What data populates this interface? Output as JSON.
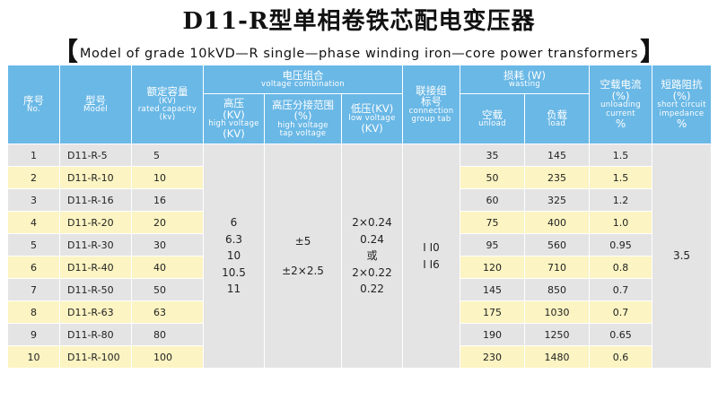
{
  "title": "D11-R型单相卷铁芯配电变压器",
  "subtitle": {
    "left_bracket": "【",
    "text": "Model of grade 10kVD—R single—phase winding iron—core power transformers",
    "right_bracket": "】"
  },
  "headers": {
    "no_cn": "序号",
    "no_en": "No.",
    "model_cn": "型号",
    "model_en": "Model",
    "cap_cn": "额定容量",
    "cap_unit": "(KV)",
    "cap_en": "rated capacity",
    "cap_en2": "(kv)",
    "volt_cn": "电压组合",
    "volt_en": "voltage combination",
    "hv_cn": "高压",
    "hv_unit": "(KV)",
    "hv_en": "high voltage",
    "hv_unit2": "(KV)",
    "tap_cn": "高压分接范围",
    "tap_unit": "(%)",
    "tap_en1": "high voltage",
    "tap_en2": "tap voltage",
    "lv_cn": "低压(KV)",
    "lv_en": "low voltage",
    "lv_unit": "(KV)",
    "grp_cn1": "联接组",
    "grp_cn2": "标号",
    "grp_en1": "connection",
    "grp_en2": "group tab",
    "loss_cn": "损耗 (W)",
    "loss_en": "wasting",
    "unload_cn": "空载",
    "unload_en": "unload",
    "load_cn": "负载",
    "load_en": "load",
    "cur_cn": "空载电流",
    "cur_unit": "(%)",
    "cur_en1": "unloading",
    "cur_en2": "current",
    "cur_pct": "%",
    "imp_cn": "短路阻抗",
    "imp_unit": "(%)",
    "imp_en1": "short circuit",
    "imp_en2": "impedance",
    "imp_pct": "%"
  },
  "merged": {
    "hv": [
      "6",
      "6.3",
      "10",
      "10.5",
      "11"
    ],
    "tap": [
      "±5",
      "±2×2.5"
    ],
    "lv": [
      "2×0.24",
      "0.24",
      "或",
      "2×0.22",
      "0.22"
    ],
    "group": [
      "I I0",
      "I I6"
    ],
    "impedance": "3.5"
  },
  "rows": [
    {
      "no": "1",
      "model": "D11-R-5",
      "cap": "5",
      "unload": "35",
      "load": "145",
      "current": "1.5"
    },
    {
      "no": "2",
      "model": "D11-R-10",
      "cap": "10",
      "unload": "50",
      "load": "235",
      "current": "1.5"
    },
    {
      "no": "3",
      "model": "D11-R-16",
      "cap": "16",
      "unload": "60",
      "load": "325",
      "current": "1.2"
    },
    {
      "no": "4",
      "model": "D11-R-20",
      "cap": "20",
      "unload": "75",
      "load": "400",
      "current": "1.0"
    },
    {
      "no": "5",
      "model": "D11-R-30",
      "cap": "30",
      "unload": "95",
      "load": "560",
      "current": "0.95"
    },
    {
      "no": "6",
      "model": "D11-R-40",
      "cap": "40",
      "unload": "120",
      "load": "710",
      "current": "0.8"
    },
    {
      "no": "7",
      "model": "D11-R-50",
      "cap": "50",
      "unload": "145",
      "load": "850",
      "current": "0.7"
    },
    {
      "no": "8",
      "model": "D11-R-63",
      "cap": "63",
      "unload": "175",
      "load": "1030",
      "current": "0.7"
    },
    {
      "no": "9",
      "model": "D11-R-80",
      "cap": "80",
      "unload": "190",
      "load": "1250",
      "current": "0.65"
    },
    {
      "no": "10",
      "model": "D11-R-100",
      "cap": "100",
      "unload": "230",
      "load": "1480",
      "current": "0.6"
    }
  ]
}
